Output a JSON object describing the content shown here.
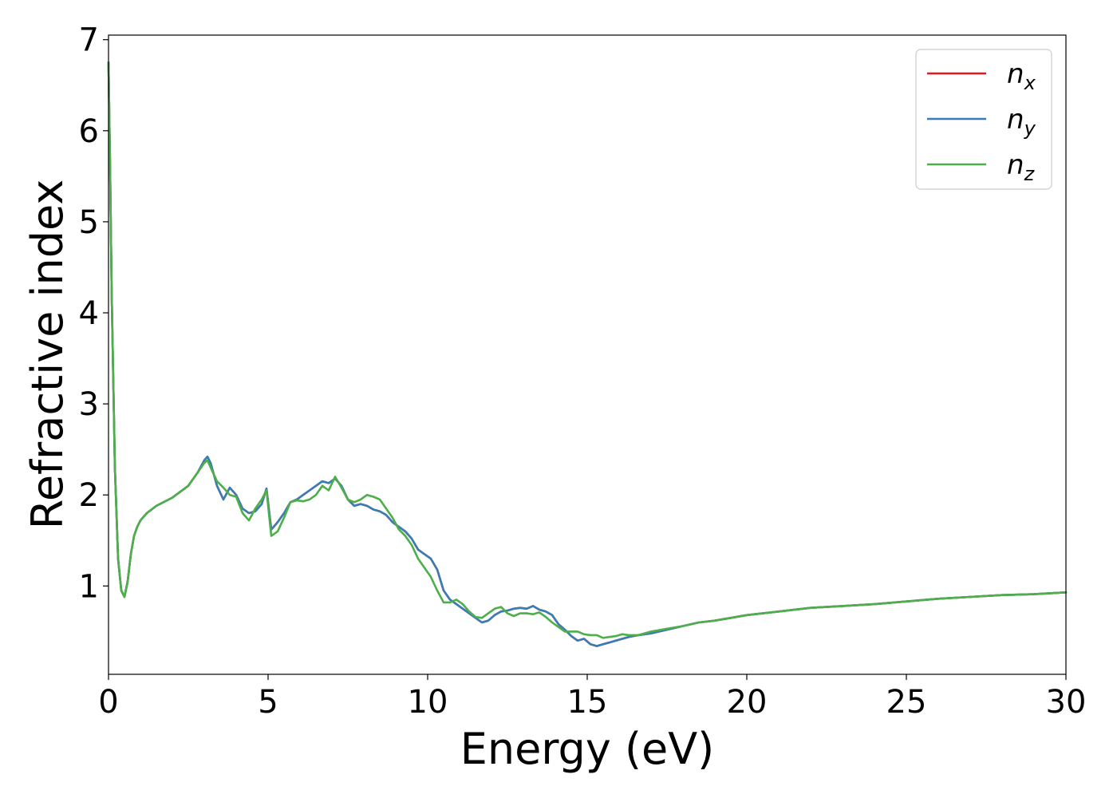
{
  "chart_data": {
    "type": "line",
    "xlabel": "Energy (eV)",
    "ylabel": "Refractive index",
    "xlim": [
      0,
      30
    ],
    "ylim": [
      0.03,
      7.05
    ],
    "xticks": [
      0,
      5,
      10,
      15,
      20,
      25,
      30
    ],
    "yticks": [
      1,
      2,
      3,
      4,
      5,
      6,
      7
    ],
    "grid": false,
    "legend_position": "top-right",
    "series": [
      {
        "name": "n",
        "subscript": "x",
        "color": "#e41a1c",
        "x": [
          0,
          0.05,
          0.1,
          0.2,
          0.3,
          0.4,
          0.5,
          0.6,
          0.7,
          0.8,
          0.9,
          1.0,
          1.2,
          1.5,
          2.0,
          2.5,
          2.8,
          3.0,
          3.1,
          3.2,
          3.4,
          3.6,
          3.8,
          4.0,
          4.2,
          4.4,
          4.6,
          4.8,
          4.95,
          5.1,
          5.3,
          5.5,
          5.7,
          5.9,
          6.1,
          6.3,
          6.5,
          6.7,
          6.9,
          7.1,
          7.3,
          7.5,
          7.7,
          7.9,
          8.1,
          8.3,
          8.5,
          8.7,
          8.9,
          9.1,
          9.3,
          9.5,
          9.7,
          9.9,
          10.1,
          10.3,
          10.5,
          10.7,
          10.9,
          11.1,
          11.3,
          11.5,
          11.7,
          11.9,
          12.1,
          12.3,
          12.5,
          12.7,
          12.9,
          13.1,
          13.3,
          13.5,
          13.7,
          13.9,
          14.1,
          14.3,
          14.5,
          14.7,
          14.9,
          15.1,
          15.3,
          15.5,
          15.7,
          15.9,
          16.1,
          16.3,
          16.6,
          17.0,
          17.5,
          18.0,
          18.5,
          19.0,
          19.5,
          20.0,
          21.0,
          22.0,
          23.0,
          24.0,
          25.0,
          26.0,
          27.0,
          28.0,
          29.0,
          30.0
        ],
        "values": [
          6.75,
          5.6,
          4.2,
          2.3,
          1.3,
          0.95,
          0.88,
          1.05,
          1.35,
          1.55,
          1.65,
          1.72,
          1.8,
          1.88,
          1.97,
          2.1,
          2.25,
          2.38,
          2.42,
          2.35,
          2.1,
          1.95,
          2.08,
          2.0,
          1.85,
          1.8,
          1.82,
          1.9,
          2.07,
          1.62,
          1.7,
          1.8,
          1.92,
          1.95,
          2.0,
          2.05,
          2.1,
          2.15,
          2.13,
          2.18,
          2.1,
          1.95,
          1.88,
          1.9,
          1.88,
          1.84,
          1.82,
          1.78,
          1.7,
          1.65,
          1.6,
          1.52,
          1.4,
          1.35,
          1.3,
          1.18,
          0.95,
          0.85,
          0.8,
          0.75,
          0.7,
          0.65,
          0.6,
          0.62,
          0.68,
          0.72,
          0.73,
          0.75,
          0.76,
          0.75,
          0.78,
          0.74,
          0.72,
          0.68,
          0.58,
          0.52,
          0.45,
          0.4,
          0.42,
          0.36,
          0.34,
          0.36,
          0.38,
          0.4,
          0.42,
          0.44,
          0.46,
          0.48,
          0.52,
          0.56,
          0.6,
          0.62,
          0.65,
          0.68,
          0.72,
          0.76,
          0.78,
          0.8,
          0.83,
          0.86,
          0.88,
          0.9,
          0.91,
          0.93
        ]
      },
      {
        "name": "n",
        "subscript": "y",
        "color": "#377eb8",
        "x": [
          0,
          0.05,
          0.1,
          0.2,
          0.3,
          0.4,
          0.5,
          0.6,
          0.7,
          0.8,
          0.9,
          1.0,
          1.2,
          1.5,
          2.0,
          2.5,
          2.8,
          3.0,
          3.1,
          3.2,
          3.4,
          3.6,
          3.8,
          4.0,
          4.2,
          4.4,
          4.6,
          4.8,
          4.95,
          5.1,
          5.3,
          5.5,
          5.7,
          5.9,
          6.1,
          6.3,
          6.5,
          6.7,
          6.9,
          7.1,
          7.3,
          7.5,
          7.7,
          7.9,
          8.1,
          8.3,
          8.5,
          8.7,
          8.9,
          9.1,
          9.3,
          9.5,
          9.7,
          9.9,
          10.1,
          10.3,
          10.5,
          10.7,
          10.9,
          11.1,
          11.3,
          11.5,
          11.7,
          11.9,
          12.1,
          12.3,
          12.5,
          12.7,
          12.9,
          13.1,
          13.3,
          13.5,
          13.7,
          13.9,
          14.1,
          14.3,
          14.5,
          14.7,
          14.9,
          15.1,
          15.3,
          15.5,
          15.7,
          15.9,
          16.1,
          16.3,
          16.6,
          17.0,
          17.5,
          18.0,
          18.5,
          19.0,
          19.5,
          20.0,
          21.0,
          22.0,
          23.0,
          24.0,
          25.0,
          26.0,
          27.0,
          28.0,
          29.0,
          30.0
        ],
        "values": [
          6.75,
          5.6,
          4.2,
          2.3,
          1.3,
          0.95,
          0.88,
          1.05,
          1.35,
          1.55,
          1.65,
          1.72,
          1.8,
          1.88,
          1.97,
          2.1,
          2.25,
          2.38,
          2.42,
          2.35,
          2.1,
          1.95,
          2.08,
          2.0,
          1.85,
          1.8,
          1.82,
          1.9,
          2.07,
          1.62,
          1.7,
          1.8,
          1.92,
          1.95,
          2.0,
          2.05,
          2.1,
          2.15,
          2.13,
          2.18,
          2.1,
          1.95,
          1.88,
          1.9,
          1.88,
          1.84,
          1.82,
          1.78,
          1.7,
          1.65,
          1.6,
          1.52,
          1.4,
          1.35,
          1.3,
          1.18,
          0.95,
          0.85,
          0.8,
          0.75,
          0.7,
          0.65,
          0.6,
          0.62,
          0.68,
          0.72,
          0.73,
          0.75,
          0.76,
          0.75,
          0.78,
          0.74,
          0.72,
          0.68,
          0.58,
          0.52,
          0.45,
          0.4,
          0.42,
          0.36,
          0.34,
          0.36,
          0.38,
          0.4,
          0.42,
          0.44,
          0.46,
          0.48,
          0.52,
          0.56,
          0.6,
          0.62,
          0.65,
          0.68,
          0.72,
          0.76,
          0.78,
          0.8,
          0.83,
          0.86,
          0.88,
          0.9,
          0.91,
          0.93
        ]
      },
      {
        "name": "n",
        "subscript": "z",
        "color": "#4daf4a",
        "x": [
          0,
          0.05,
          0.1,
          0.2,
          0.3,
          0.4,
          0.5,
          0.6,
          0.7,
          0.8,
          0.9,
          1.0,
          1.2,
          1.5,
          2.0,
          2.5,
          2.8,
          3.0,
          3.1,
          3.2,
          3.4,
          3.6,
          3.8,
          4.0,
          4.2,
          4.4,
          4.6,
          4.8,
          4.95,
          5.1,
          5.3,
          5.5,
          5.7,
          5.9,
          6.1,
          6.3,
          6.5,
          6.7,
          6.9,
          7.1,
          7.3,
          7.5,
          7.7,
          7.9,
          8.1,
          8.3,
          8.5,
          8.7,
          8.9,
          9.1,
          9.3,
          9.5,
          9.7,
          9.9,
          10.1,
          10.3,
          10.5,
          10.7,
          10.9,
          11.1,
          11.3,
          11.5,
          11.7,
          11.9,
          12.1,
          12.3,
          12.5,
          12.7,
          12.9,
          13.1,
          13.3,
          13.5,
          13.7,
          13.9,
          14.1,
          14.3,
          14.5,
          14.7,
          14.9,
          15.1,
          15.3,
          15.5,
          15.7,
          15.9,
          16.1,
          16.3,
          16.6,
          17.0,
          17.5,
          18.0,
          18.5,
          19.0,
          19.5,
          20.0,
          21.0,
          22.0,
          23.0,
          24.0,
          25.0,
          26.0,
          27.0,
          28.0,
          29.0,
          30.0
        ],
        "values": [
          6.75,
          5.6,
          4.2,
          2.3,
          1.3,
          0.95,
          0.88,
          1.05,
          1.35,
          1.55,
          1.65,
          1.72,
          1.8,
          1.88,
          1.97,
          2.1,
          2.25,
          2.35,
          2.38,
          2.3,
          2.15,
          2.08,
          2.0,
          1.98,
          1.8,
          1.72,
          1.85,
          1.95,
          2.05,
          1.55,
          1.6,
          1.75,
          1.92,
          1.94,
          1.93,
          1.95,
          2.0,
          2.1,
          2.05,
          2.2,
          2.08,
          1.95,
          1.92,
          1.95,
          2.0,
          1.98,
          1.95,
          1.85,
          1.75,
          1.62,
          1.55,
          1.45,
          1.3,
          1.2,
          1.1,
          0.95,
          0.82,
          0.82,
          0.85,
          0.8,
          0.72,
          0.66,
          0.65,
          0.7,
          0.75,
          0.77,
          0.7,
          0.67,
          0.7,
          0.7,
          0.69,
          0.71,
          0.66,
          0.6,
          0.55,
          0.5,
          0.5,
          0.5,
          0.47,
          0.46,
          0.46,
          0.43,
          0.44,
          0.45,
          0.47,
          0.46,
          0.46,
          0.5,
          0.53,
          0.56,
          0.6,
          0.62,
          0.65,
          0.68,
          0.72,
          0.76,
          0.78,
          0.8,
          0.83,
          0.86,
          0.88,
          0.9,
          0.91,
          0.93
        ]
      }
    ]
  }
}
